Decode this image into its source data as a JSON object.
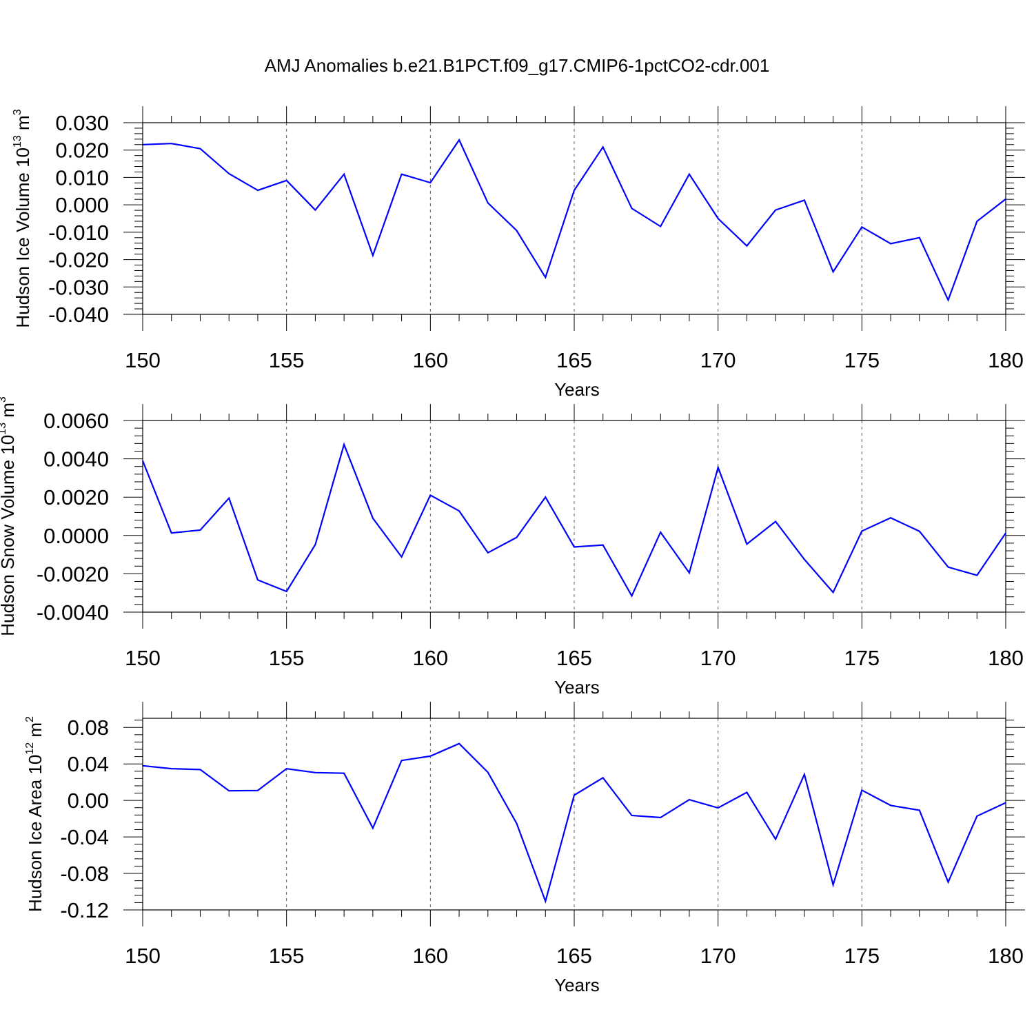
{
  "title": "AMJ Anomalies b.e21.B1PCT.f09_g17.CMIP6-1pctCO2-cdr.001",
  "colors": {
    "series": "#0000ff",
    "axis": "#000000",
    "grid": "#555555"
  },
  "chart_data": [
    {
      "type": "line",
      "title": "",
      "xlabel": "Years",
      "ylabel": "Hudson Ice Volume",
      "ylabel_unit_base": "10",
      "ylabel_unit_exp": "13",
      "ylabel_unit_m": "m",
      "ylabel_unit_m_exp": "3",
      "xlim": [
        150,
        180
      ],
      "ylim": [
        -0.04,
        0.03
      ],
      "x_ticks": [
        150,
        155,
        160,
        165,
        170,
        175,
        180
      ],
      "y_ticks": [
        -0.04,
        -0.03,
        -0.02,
        -0.01,
        0.0,
        0.01,
        0.02,
        0.03
      ],
      "y_tick_labels": [
        "-0.040",
        "-0.030",
        "-0.020",
        "-0.010",
        "0.000",
        "0.010",
        "0.020",
        "0.030"
      ],
      "grid": "vertical dashed at major x ticks",
      "x": [
        150,
        151,
        152,
        153,
        154,
        155,
        156,
        157,
        158,
        159,
        160,
        161,
        162,
        163,
        164,
        165,
        166,
        167,
        168,
        169,
        170,
        171,
        172,
        173,
        174,
        175,
        176,
        177,
        178,
        179,
        180
      ],
      "values": [
        0.022,
        0.0224,
        0.0205,
        0.0114,
        0.0053,
        0.0089,
        -0.0019,
        0.0112,
        -0.0185,
        0.0112,
        0.0081,
        0.0237,
        0.0007,
        -0.0094,
        -0.0265,
        0.0053,
        0.0211,
        -0.0013,
        -0.0079,
        0.0112,
        -0.005,
        -0.015,
        -0.0019,
        0.0017,
        -0.0245,
        -0.0081,
        -0.0142,
        -0.012,
        -0.0348,
        -0.006,
        0.0021
      ]
    },
    {
      "type": "line",
      "title": "",
      "xlabel": "Years",
      "ylabel": "Hudson Snow Volume",
      "ylabel_unit_base": "10",
      "ylabel_unit_exp": "13",
      "ylabel_unit_m": "m",
      "ylabel_unit_m_exp": "3",
      "xlim": [
        150,
        180
      ],
      "ylim": [
        -0.004,
        0.006
      ],
      "x_ticks": [
        150,
        155,
        160,
        165,
        170,
        175,
        180
      ],
      "y_ticks": [
        -0.004,
        -0.002,
        0.0,
        0.002,
        0.004,
        0.006
      ],
      "y_tick_labels": [
        "-0.0040",
        "-0.0020",
        "0.0000",
        "0.0020",
        "0.0040",
        "0.0060"
      ],
      "grid": "vertical dashed at major x ticks",
      "x": [
        150,
        151,
        152,
        153,
        154,
        155,
        156,
        157,
        158,
        159,
        160,
        161,
        162,
        163,
        164,
        165,
        166,
        167,
        168,
        169,
        170,
        171,
        172,
        173,
        174,
        175,
        176,
        177,
        178,
        179,
        180
      ],
      "values": [
        0.0039,
        0.00013,
        0.00028,
        0.00195,
        -0.00232,
        -0.00292,
        -0.00048,
        0.00475,
        0.0009,
        -0.00112,
        0.0021,
        0.00128,
        -0.0009,
        -0.0001,
        0.002,
        -0.0006,
        -0.0005,
        -0.00315,
        0.00017,
        -0.00195,
        0.00355,
        -0.00045,
        0.00073,
        -0.00125,
        -0.00297,
        0.00023,
        0.00092,
        0.00022,
        -0.00165,
        -0.00208,
        0.00013
      ]
    },
    {
      "type": "line",
      "title": "",
      "xlabel": "Years",
      "ylabel": "Hudson Ice Area",
      "ylabel_unit_base": "10",
      "ylabel_unit_exp": "12",
      "ylabel_unit_m": "m",
      "ylabel_unit_m_exp": "2",
      "xlim": [
        150,
        180
      ],
      "ylim": [
        -0.12,
        0.09
      ],
      "x_ticks": [
        150,
        155,
        160,
        165,
        170,
        175,
        180
      ],
      "y_ticks": [
        -0.12,
        -0.08,
        -0.04,
        0.0,
        0.04,
        0.08
      ],
      "y_tick_labels": [
        "-0.12",
        "-0.08",
        "-0.04",
        "0.00",
        "0.04",
        "0.08"
      ],
      "grid": "vertical dashed at major x ticks",
      "x": [
        150,
        151,
        152,
        153,
        154,
        155,
        156,
        157,
        158,
        159,
        160,
        161,
        162,
        163,
        164,
        165,
        166,
        167,
        168,
        169,
        170,
        171,
        172,
        173,
        174,
        175,
        176,
        177,
        178,
        179,
        180
      ],
      "values": [
        0.038,
        0.0348,
        0.0338,
        0.0105,
        0.0108,
        0.0348,
        0.0305,
        0.0298,
        -0.0303,
        0.0438,
        0.0485,
        0.0623,
        0.0308,
        -0.0253,
        -0.1105,
        0.0058,
        0.0248,
        -0.0165,
        -0.0188,
        0.0008,
        -0.0082,
        0.0088,
        -0.0425,
        0.0285,
        -0.0925,
        0.0112,
        -0.0055,
        -0.0108,
        -0.0895,
        -0.0172,
        -0.0025
      ]
    }
  ]
}
